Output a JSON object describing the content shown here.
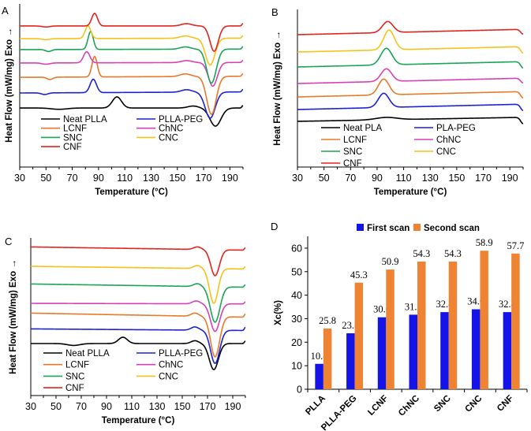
{
  "chart_data": [
    {
      "panel": "A",
      "type": "line",
      "xlabel": "Temperature (°C)",
      "ylabel": "Heat Flow (mW/mg) Exo →",
      "xlim": [
        30,
        200
      ],
      "xticks": [
        30,
        50,
        70,
        90,
        110,
        130,
        150,
        170,
        190
      ],
      "ylim": [
        0,
        100
      ],
      "series": [
        {
          "name": "Neat PLLA",
          "color": "#000000",
          "baseline": 36.2,
          "slope": 0,
          "features": [
            {
              "T": 60,
              "amp": -0.8,
              "sigma": 6
            },
            {
              "T": 104,
              "amp": 6.8,
              "sigma": 3.5
            },
            {
              "T": 162,
              "amp": 1.2,
              "sigma": 4
            },
            {
              "T": 179,
              "amp": -11.1,
              "sigma": 4.2
            },
            {
              "T": 200,
              "amp": 1.5,
              "sigma": 0.8
            }
          ]
        },
        {
          "name": "PLLA-PEG",
          "color": "#1c22d0",
          "baseline": 45.4,
          "slope": 0.004,
          "features": [
            {
              "T": 49,
              "amp": -1.0,
              "sigma": 2.5
            },
            {
              "T": 86,
              "amp": 8.2,
              "sigma": 2.4
            },
            {
              "T": 157,
              "amp": 1.5,
              "sigma": 4
            },
            {
              "T": 175,
              "amp": -16,
              "sigma": 3.8
            },
            {
              "T": 200,
              "amp": 1.5,
              "sigma": 0.8
            }
          ]
        },
        {
          "name": " LCNF",
          "color": "#e8792a",
          "baseline": 55,
          "slope": 0.004,
          "features": [
            {
              "T": 53,
              "amp": -1.4,
              "sigma": 2.2
            },
            {
              "T": 87,
              "amp": 12.6,
              "sigma": 2
            },
            {
              "T": 156,
              "amp": 1.6,
              "sigma": 4
            },
            {
              "T": 176,
              "amp": -23.2,
              "sigma": 3.6
            },
            {
              "T": 200,
              "amp": 1.5,
              "sigma": 0.8
            }
          ]
        },
        {
          "name": "ChNC",
          "color": "#d840b5",
          "baseline": 63.8,
          "slope": 0.002,
          "features": [
            {
              "T": 50,
              "amp": -0.8,
              "sigma": 3
            },
            {
              "T": 81,
              "amp": 6.8,
              "sigma": 2.4
            },
            {
              "T": 157,
              "amp": 1.2,
              "sigma": 4
            },
            {
              "T": 177,
              "amp": -14.5,
              "sigma": 3.4
            },
            {
              "T": 200,
              "amp": 1.2,
              "sigma": 0.8
            }
          ]
        },
        {
          "name": "SNC",
          "color": "#1aa456",
          "baseline": 72,
          "slope": 0.002,
          "features": [
            {
              "T": 52,
              "amp": -1.2,
              "sigma": 2.2
            },
            {
              "T": 84,
              "amp": 11,
              "sigma": 2
            },
            {
              "T": 156,
              "amp": 1.4,
              "sigma": 4
            },
            {
              "T": 176,
              "amp": -20.8,
              "sigma": 3.6
            },
            {
              "T": 200,
              "amp": 1.5,
              "sigma": 0.8
            }
          ]
        },
        {
          "name": "CNC",
          "color": "#f6c21a",
          "baseline": 78.7,
          "slope": 0.002,
          "features": [
            {
              "T": 50,
              "amp": -0.6,
              "sigma": 3
            },
            {
              "T": 82,
              "amp": 7.7,
              "sigma": 2.2
            },
            {
              "T": 156,
              "amp": 1.4,
              "sigma": 4
            },
            {
              "T": 175,
              "amp": -16.4,
              "sigma": 3.6
            },
            {
              "T": 200,
              "amp": 1.5,
              "sigma": 0.8
            }
          ]
        },
        {
          "name": "CNF",
          "color": "#e3231f",
          "baseline": 86.5,
          "slope": 0,
          "features": [
            {
              "T": 50,
              "amp": -0.6,
              "sigma": 3
            },
            {
              "T": 87,
              "amp": 7.7,
              "sigma": 2.2
            },
            {
              "T": 157,
              "amp": 1.4,
              "sigma": 4
            },
            {
              "T": 178,
              "amp": -15.5,
              "sigma": 3.2
            },
            {
              "T": 200,
              "amp": 1.5,
              "sigma": 0.8
            }
          ]
        }
      ]
    },
    {
      "panel": "B",
      "type": "line",
      "xlabel": "Temperature (°C)",
      "ylabel": "Heat Flow (mW/mg) Exo →",
      "xlim": [
        30,
        200
      ],
      "xticks": [
        30,
        50,
        70,
        90,
        110,
        130,
        150,
        170,
        190
      ],
      "ylim": [
        0,
        100
      ],
      "series": [
        {
          "name": "Neat PLA",
          "color": "#000000",
          "baseline": 29,
          "slope": 0.015,
          "features": [
            {
              "T": 97,
              "amp": 1.5,
              "sigma": 8
            },
            {
              "T": 200,
              "amp": -4,
              "sigma": 1.8
            }
          ]
        },
        {
          "name": "PLA-PEG",
          "color": "#1c22d0",
          "baseline": 36.5,
          "slope": 0.02,
          "features": [
            {
              "T": 95,
              "amp": 9,
              "sigma": 4
            },
            {
              "T": 200,
              "amp": -4,
              "sigma": 1.8
            }
          ]
        },
        {
          "name": "LCNF",
          "color": "#e8792a",
          "baseline": 44.5,
          "slope": 0.02,
          "features": [
            {
              "T": 95,
              "amp": 10,
              "sigma": 4
            },
            {
              "T": 200,
              "amp": -4,
              "sigma": 1.8
            }
          ]
        },
        {
          "name": "ChNC",
          "color": "#d840b5",
          "baseline": 53,
          "slope": 0.02,
          "features": [
            {
              "T": 97,
              "amp": 8,
              "sigma": 4
            },
            {
              "T": 200,
              "amp": -3,
              "sigma": 1.8
            }
          ]
        },
        {
          "name": " SNC",
          "color": "#1aa456",
          "baseline": 63.5,
          "slope": 0.02,
          "features": [
            {
              "T": 97,
              "amp": 10.5,
              "sigma": 4.2
            },
            {
              "T": 200,
              "amp": -4,
              "sigma": 1.8
            }
          ]
        },
        {
          "name": "CNC",
          "color": "#f6c21a",
          "baseline": 73,
          "slope": 0.02,
          "features": [
            {
              "T": 99,
              "amp": 12.5,
              "sigma": 4
            },
            {
              "T": 200,
              "amp": -4,
              "sigma": 1.8
            }
          ]
        },
        {
          "name": "CNF",
          "color": "#e3231f",
          "baseline": 84,
          "slope": 0.02,
          "features": [
            {
              "T": 98,
              "amp": 7,
              "sigma": 4
            },
            {
              "T": 200,
              "amp": -3,
              "sigma": 1.8
            }
          ]
        }
      ]
    },
    {
      "panel": "C",
      "type": "line",
      "xlabel": "Temperature (°C)",
      "ylabel": "Heat Flow (mW/mg) Exo →",
      "xlim": [
        30,
        200
      ],
      "xticks": [
        30,
        50,
        70,
        90,
        110,
        130,
        150,
        170,
        190
      ],
      "ylim": [
        0,
        100
      ],
      "series": [
        {
          "name": "Neat PLLA",
          "color": "#000000",
          "baseline": 33,
          "slope": 0,
          "features": [
            {
              "T": 64,
              "amp": -1.2,
              "sigma": 5
            },
            {
              "T": 103,
              "amp": 4,
              "sigma": 3.5
            },
            {
              "T": 160,
              "amp": 1.8,
              "sigma": 3
            },
            {
              "T": 175,
              "amp": -16.5,
              "sigma": 3.6
            },
            {
              "T": 200,
              "amp": 1.5,
              "sigma": 0.8
            }
          ]
        },
        {
          "name": "PLLA-PEG",
          "color": "#1c22d0",
          "baseline": 42.3,
          "slope": -0.006,
          "features": [
            {
              "T": 160,
              "amp": 2,
              "sigma": 3
            },
            {
              "T": 176,
              "amp": -21,
              "sigma": 3.6
            },
            {
              "T": 200,
              "amp": 2,
              "sigma": 0.8
            }
          ]
        },
        {
          "name": "LCNF",
          "color": "#e8792a",
          "baseline": 52.3,
          "slope": -0.015,
          "features": [
            {
              "T": 160,
              "amp": 2,
              "sigma": 3
            },
            {
              "T": 176,
              "amp": -25.5,
              "sigma": 3.6
            },
            {
              "T": 200,
              "amp": 2,
              "sigma": 0.8
            }
          ]
        },
        {
          "name": "ChNC",
          "color": "#d840b5",
          "baseline": 58.5,
          "slope": -0.002,
          "features": [
            {
              "T": 161,
              "amp": 1.8,
              "sigma": 3
            },
            {
              "T": 176,
              "amp": -17.5,
              "sigma": 3.6
            },
            {
              "T": 200,
              "amp": 1.2,
              "sigma": 0.8
            }
          ]
        },
        {
          "name": "SNC",
          "color": "#1aa456",
          "baseline": 70.8,
          "slope": -0.012,
          "features": [
            {
              "T": 162,
              "amp": 1.8,
              "sigma": 3
            },
            {
              "T": 176,
              "amp": -22.5,
              "sigma": 3.8
            },
            {
              "T": 200,
              "amp": 1.5,
              "sigma": 0.8
            }
          ]
        },
        {
          "name": "CNC",
          "color": "#f6c21a",
          "baseline": 82,
          "slope": -0.01,
          "features": [
            {
              "T": 162,
              "amp": 1.8,
              "sigma": 3
            },
            {
              "T": 175,
              "amp": -22,
              "sigma": 3.4
            },
            {
              "T": 200,
              "amp": 1.5,
              "sigma": 0.8
            }
          ]
        },
        {
          "name": "CNF",
          "color": "#e3231f",
          "baseline": 94.3,
          "slope": -0.012,
          "features": [
            {
              "T": 162,
              "amp": 1.6,
              "sigma": 3
            },
            {
              "T": 176,
              "amp": -16.5,
              "sigma": 3.4
            },
            {
              "T": 200,
              "amp": 1.5,
              "sigma": 0.8
            }
          ]
        }
      ]
    },
    {
      "panel": "D",
      "type": "bar",
      "ylabel": "Xc(%)",
      "ylim": [
        0,
        65
      ],
      "yticks": [
        0,
        10,
        20,
        30,
        40,
        50,
        60
      ],
      "legend_position": "top",
      "categories": [
        "PLLA",
        "PLLA-PEG",
        "LCNF",
        "ChNC",
        "SNC",
        "CNC",
        "CNF"
      ],
      "series": [
        {
          "name": "First scan",
          "color": "#1414e6",
          "values": [
            10.8,
            23.8,
            30.6,
            31.7,
            32.8,
            34.0,
            32.8
          ],
          "labels": [
            "10.8",
            "23.8",
            "30.6",
            "31.7",
            "32.8",
            "34.0",
            "32.8"
          ]
        },
        {
          "name": "Second scan",
          "color": "#ee8334",
          "values": [
            25.8,
            45.3,
            50.9,
            54.3,
            54.3,
            58.9,
            57.7
          ],
          "labels": [
            "25.8",
            "45.3",
            "50.9",
            "54.3",
            "54.3",
            "58.9",
            "57.7"
          ]
        }
      ]
    }
  ]
}
